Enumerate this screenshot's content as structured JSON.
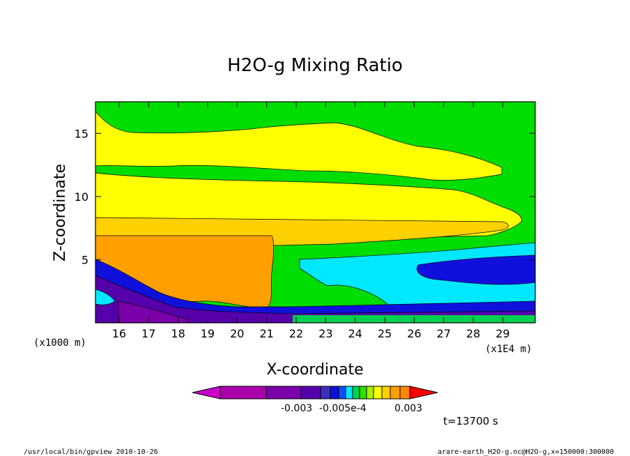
{
  "chart_data": {
    "type": "heatmap",
    "title": "H2O-g Mixing Ratio",
    "xlabel": "X-coordinate",
    "ylabel": "Z-coordinate",
    "x_units_left": "(x1000 m)",
    "x_units_right": "(x1E4 m)",
    "xlim": [
      15.2,
      30.1
    ],
    "ylim": [
      0,
      17.5
    ],
    "x_ticks": [
      16,
      17,
      18,
      19,
      20,
      21,
      22,
      23,
      24,
      25,
      26,
      27,
      28,
      29
    ],
    "y_ticks": [
      5,
      10,
      15
    ],
    "x_tick_labels": [
      "16",
      "17",
      "18",
      "19",
      "20",
      "21",
      "22",
      "23",
      "24",
      "25",
      "26",
      "27",
      "28",
      "29"
    ],
    "y_tick_labels": [
      "5",
      "10",
      "15"
    ],
    "colorbar": {
      "colors": [
        "#cc00cc",
        "#aa00aa",
        "#7a00aa",
        "#5500aa",
        "#3a30b8",
        "#1010dd",
        "#0a50ff",
        "#00e8ff",
        "#00d050",
        "#30e000",
        "#a8f000",
        "#ffff00",
        "#ffd000",
        "#ffa000",
        "#ff8800",
        "#ff0000"
      ],
      "tick_labels": [
        "-0.003",
        "-0.005e-4",
        "0.003"
      ]
    },
    "time_label": "t=13700 s"
  },
  "footer": {
    "left": "/usr/local/bin/gpview  2010-10-26",
    "right": "arare-earth_H2O-g.nc@H2O-g,x=150000:300000"
  }
}
